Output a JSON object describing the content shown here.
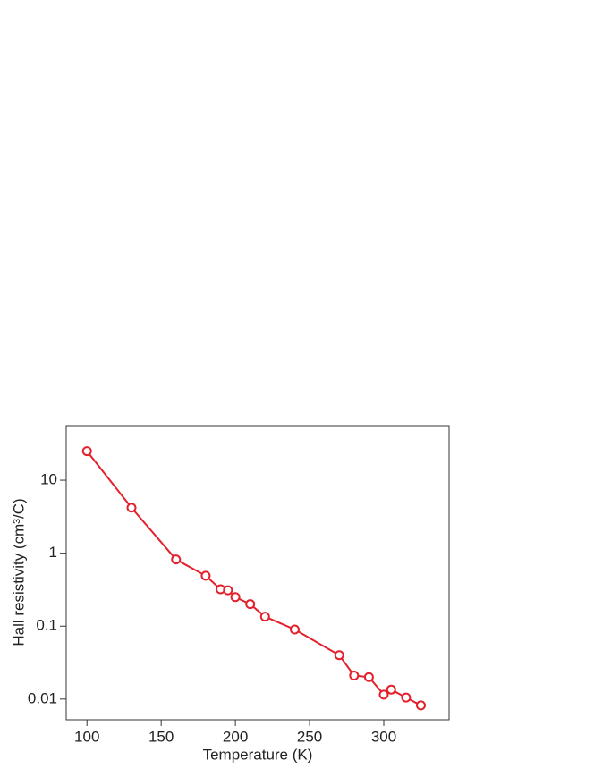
{
  "chart_data": {
    "type": "line",
    "xlabel": "Temperature (K)",
    "ylabel": "Hall resistivity (cm³/C)",
    "x": [
      100,
      130,
      160,
      180,
      190,
      195,
      200,
      210,
      220,
      240,
      270,
      280,
      290,
      300,
      305,
      315,
      325
    ],
    "series": [
      {
        "color": "#e3202b",
        "values": [
          25,
          4.2,
          0.82,
          0.49,
          0.32,
          0.31,
          0.25,
          0.2,
          0.135,
          0.09,
          0.04,
          0.021,
          0.02,
          0.0115,
          0.0135,
          0.0105,
          0.0082
        ]
      }
    ],
    "xlim": [
      86,
      344
    ],
    "xticks": [
      100,
      150,
      200,
      250,
      300
    ],
    "ylim": [
      0.0052,
      56
    ],
    "yticks": [
      0.01,
      0.1,
      1,
      10
    ],
    "ylog": true
  }
}
